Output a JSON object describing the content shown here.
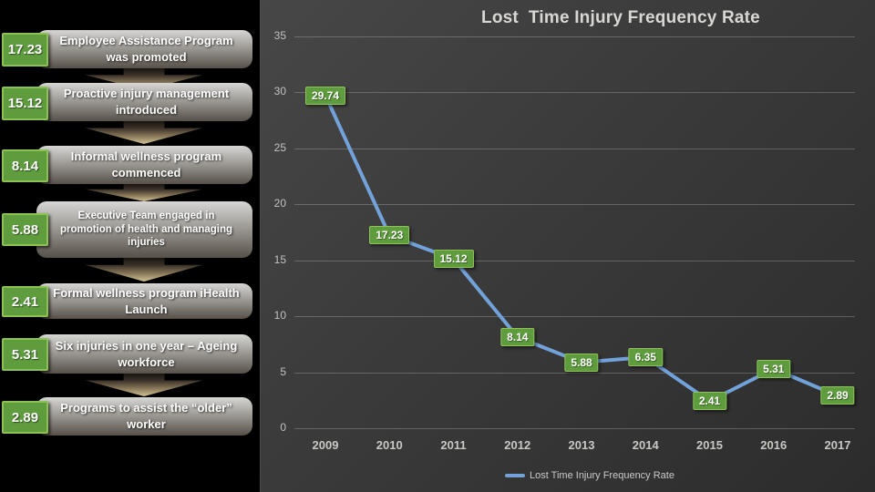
{
  "title": "Lost  Time Injury Frequency Rate",
  "left_panel": {
    "steps": [
      {
        "value": "17.23",
        "text": "Employee Assistance Program was promoted"
      },
      {
        "value": "15.12",
        "text": "Proactive injury management introduced"
      },
      {
        "value": "8.14",
        "text": "Informal wellness program commenced"
      },
      {
        "value": "5.88",
        "text": "Executive Team engaged in promotion of health and managing injuries"
      },
      {
        "value": "2.41",
        "text": "Formal wellness program iHealth Launch"
      },
      {
        "value": "5.31",
        "text": "Six injuries in one year – Ageing workforce"
      },
      {
        "value": "2.89",
        "text": "Programs to assist the “older” worker"
      }
    ]
  },
  "chart_data": {
    "type": "line",
    "title": "Lost  Time Injury Frequency Rate",
    "categories": [
      "2009",
      "2010",
      "2011",
      "2012",
      "2013",
      "2014",
      "2015",
      "2016",
      "2017"
    ],
    "series": [
      {
        "name": "Lost Time Injury Frequency Rate",
        "values": [
          29.74,
          17.23,
          15.12,
          8.14,
          5.88,
          6.35,
          2.41,
          5.31,
          2.89
        ]
      }
    ],
    "xlabel": "",
    "ylabel": "",
    "ylim": [
      0,
      35
    ],
    "ytick_step": 5,
    "grid": true,
    "legend_position": "bottom",
    "line_color": "#72a2d9",
    "label_bg": "#5e9c3e",
    "label_border": "#8fc25b"
  },
  "legend": {
    "label": "Lost Time Injury Frequency Rate"
  }
}
